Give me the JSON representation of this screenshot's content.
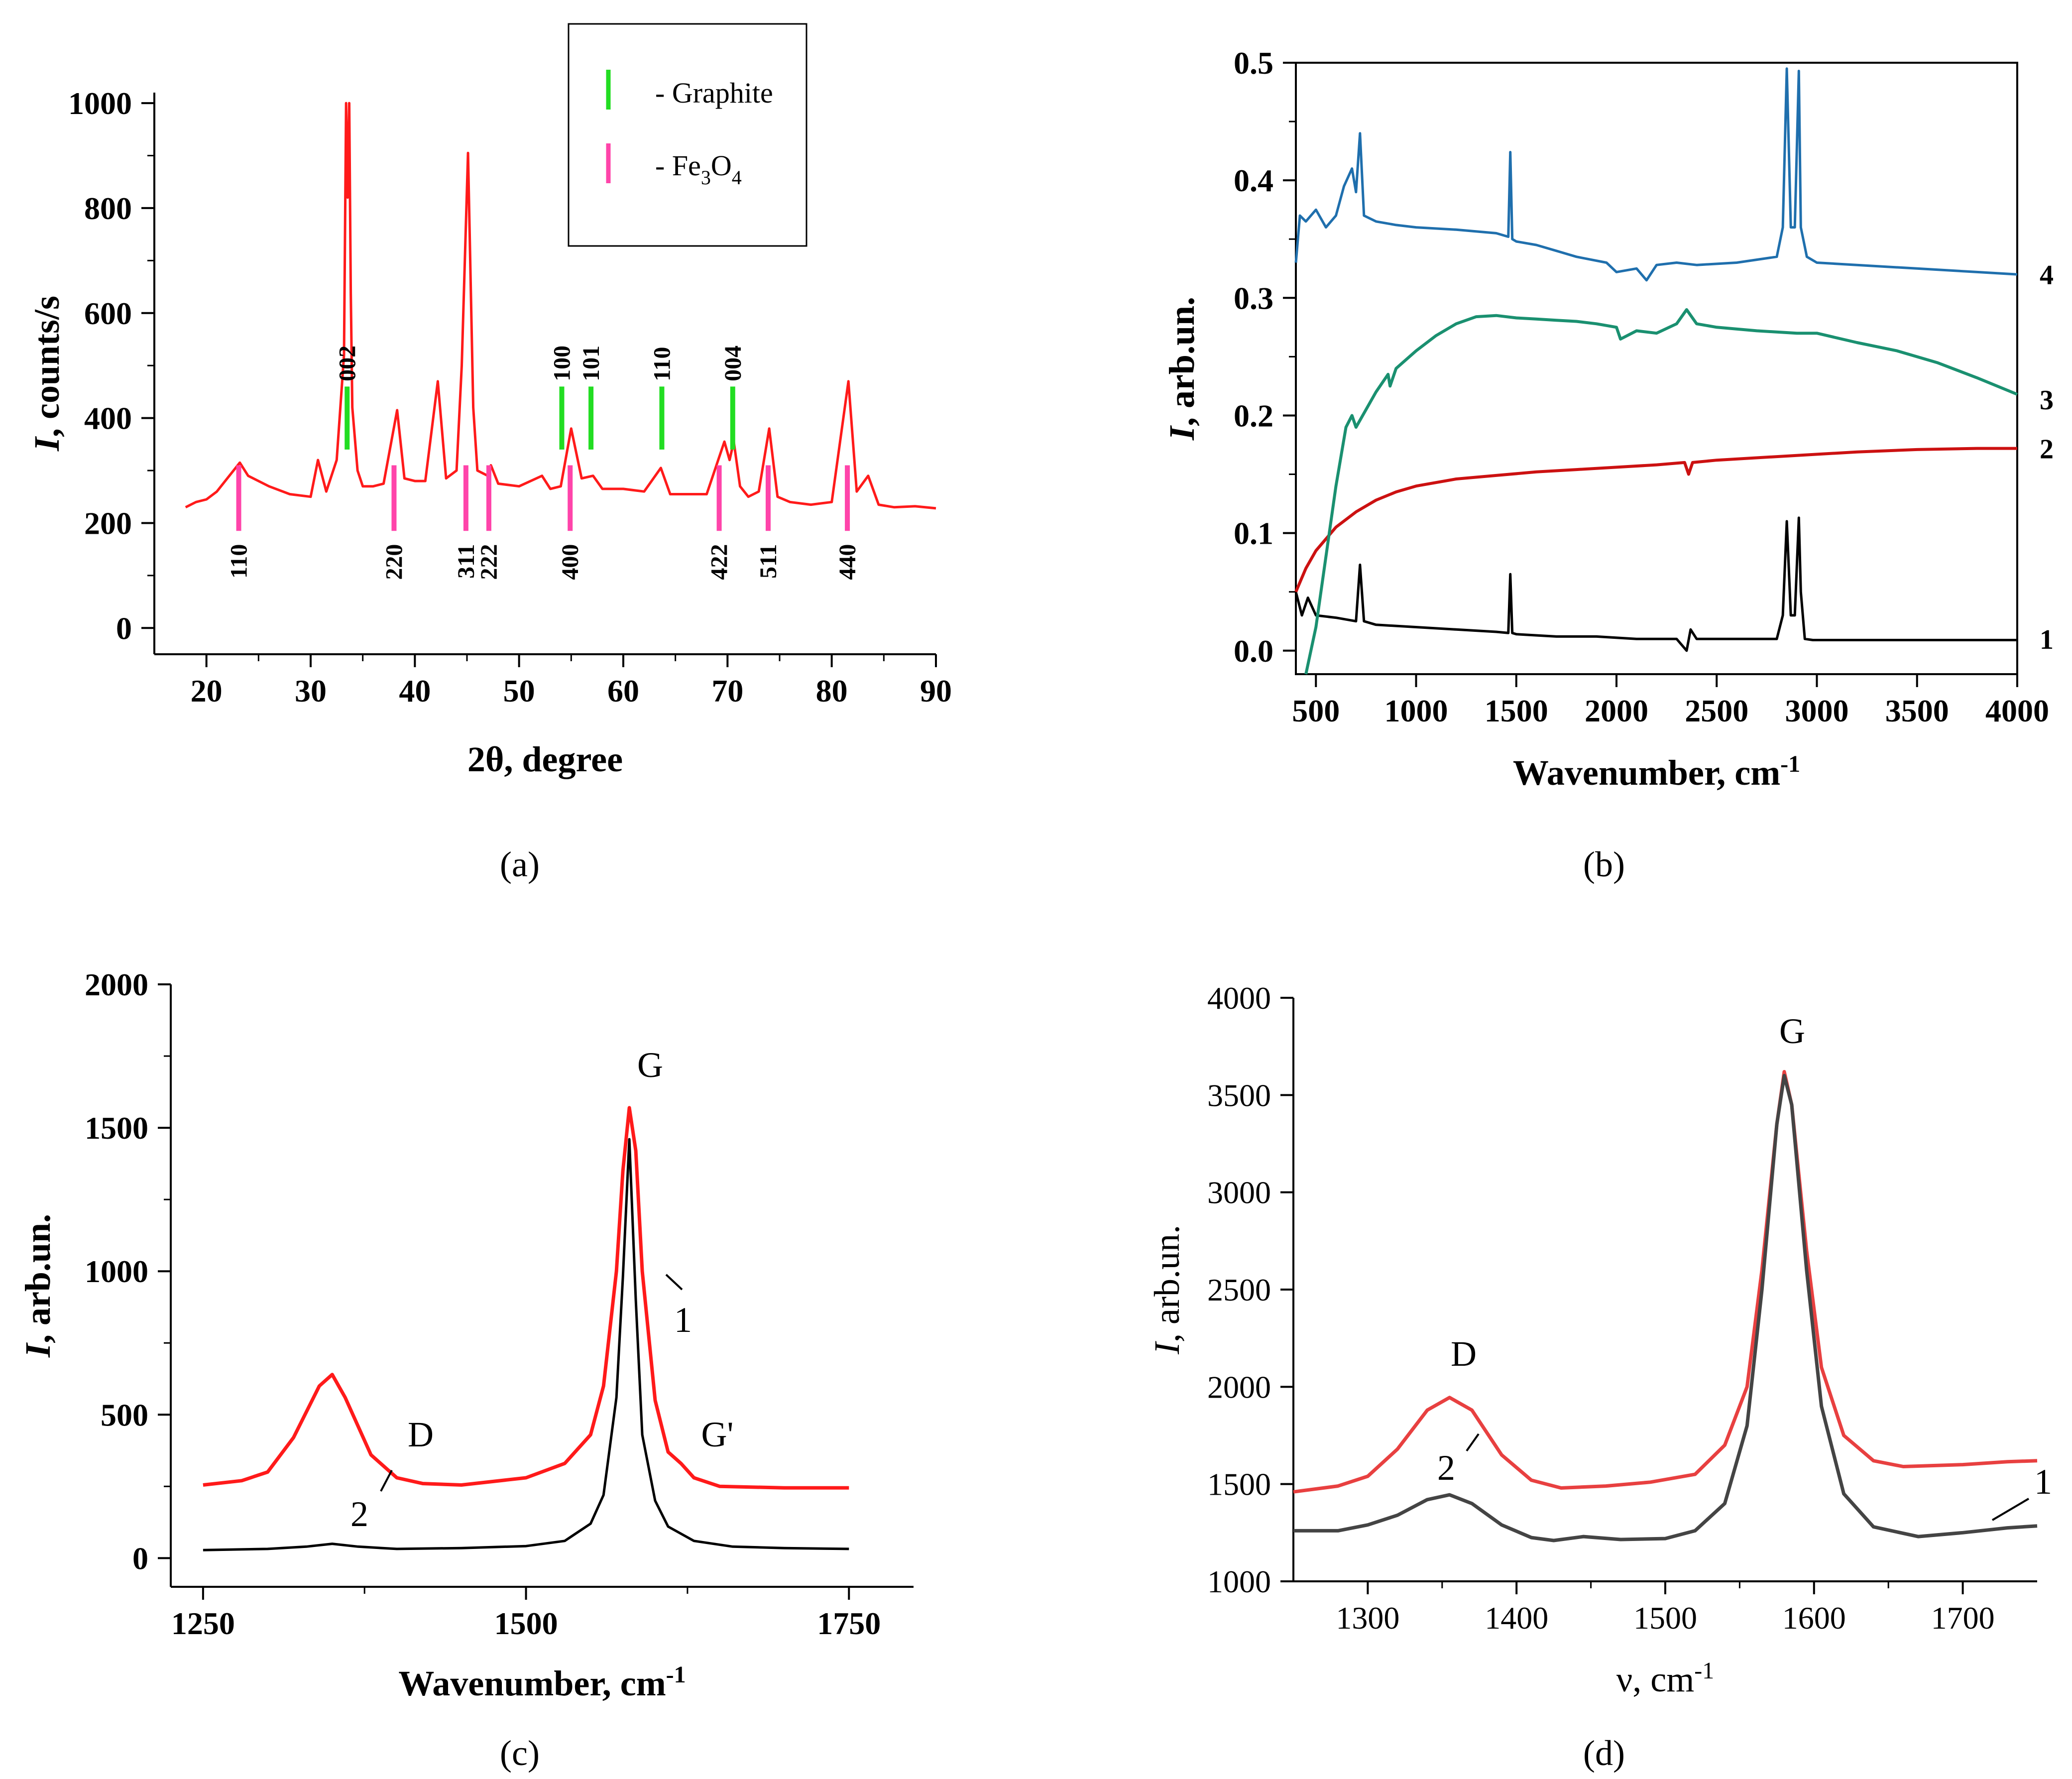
{
  "chart_data": [
    {
      "panel": "a",
      "type": "line",
      "panel_label": "(a)",
      "xlabel": "2θ, degree",
      "ylabel": "I, counts/s",
      "xlim": [
        15,
        90
      ],
      "ylim": [
        -50,
        1020
      ],
      "xticks": [
        20,
        30,
        40,
        50,
        60,
        70,
        80,
        90
      ],
      "yticks": [
        0,
        200,
        400,
        600,
        800,
        1000
      ],
      "line_color": "#ff1a1a",
      "legend": {
        "placement": "top-right",
        "entries": [
          {
            "name": "- Graphite",
            "color": "#22dd22"
          },
          {
            "name": "- Fe3O4",
            "color": "#ff44aa"
          }
        ]
      },
      "series": [
        {
          "name": "",
          "baseline": 230,
          "x": [
            18,
            19,
            20,
            21,
            22,
            23.2,
            24,
            26,
            28,
            30,
            30.7,
            31.5,
            32.5,
            33.2,
            33.4,
            33.55,
            33.7,
            33.85,
            34.0,
            34.5,
            35,
            36,
            37,
            38.3,
            39,
            40,
            41,
            42.2,
            43,
            44,
            44.5,
            45.1,
            45.6,
            46,
            47,
            47.3,
            48,
            50,
            52.2,
            53,
            54,
            55.0,
            56,
            57.1,
            58,
            60,
            62,
            63.6,
            64.5,
            66,
            68,
            69.7,
            70.2,
            70.6,
            71.2,
            72,
            73,
            74.0,
            74.8,
            76,
            78,
            80,
            81.6,
            82.4,
            83.5,
            84.5,
            86,
            88,
            90
          ],
          "y": [
            230,
            240,
            245,
            260,
            285,
            315,
            290,
            270,
            255,
            250,
            320,
            260,
            320,
            520,
            1000,
            820,
            1000,
            640,
            420,
            300,
            270,
            270,
            275,
            415,
            285,
            280,
            280,
            470,
            285,
            300,
            500,
            905,
            420,
            300,
            290,
            310,
            275,
            270,
            290,
            265,
            270,
            380,
            285,
            290,
            265,
            265,
            260,
            305,
            255,
            255,
            255,
            355,
            320,
            355,
            270,
            250,
            260,
            380,
            250,
            240,
            235,
            240,
            470,
            260,
            290,
            235,
            230,
            232,
            228
          ]
        }
      ],
      "graphite_peaks": [
        {
          "x": 33.5,
          "label": "002"
        },
        {
          "x": 54.1,
          "label": "100"
        },
        {
          "x": 56.9,
          "label": "101"
        },
        {
          "x": 63.7,
          "label": "110"
        },
        {
          "x": 70.5,
          "label": "004"
        }
      ],
      "fe3o4_peaks": [
        {
          "x": 23.1,
          "label": "110"
        },
        {
          "x": 38.0,
          "label": "220"
        },
        {
          "x": 44.9,
          "label": "311"
        },
        {
          "x": 47.1,
          "label": "222"
        },
        {
          "x": 54.9,
          "label": "400"
        },
        {
          "x": 69.2,
          "label": "422"
        },
        {
          "x": 73.9,
          "label": "511"
        },
        {
          "x": 81.5,
          "label": "440"
        }
      ]
    },
    {
      "panel": "b",
      "type": "line",
      "panel_label": "(b)",
      "xlabel": "Wavenumber, cm-1",
      "ylabel": "I, arb.un.",
      "xlim": [
        400,
        4000
      ],
      "ylim": [
        -0.02,
        0.5
      ],
      "xticks": [
        500,
        1000,
        1500,
        2000,
        2500,
        3000,
        3500,
        4000
      ],
      "yticks": [
        0.0,
        0.1,
        0.2,
        0.3,
        0.4,
        0.5
      ],
      "series": [
        {
          "name": "1",
          "color": "#000000",
          "x": [
            400,
            430,
            460,
            500,
            600,
            700,
            720,
            740,
            800,
            1000,
            1200,
            1400,
            1460,
            1470,
            1480,
            1500,
            1700,
            1900,
            2100,
            2300,
            2350,
            2370,
            2400,
            2600,
            2800,
            2830,
            2850,
            2870,
            2890,
            2910,
            2920,
            2940,
            2980,
            3200,
            3500,
            4000
          ],
          "y": [
            0.05,
            0.03,
            0.045,
            0.03,
            0.028,
            0.025,
            0.073,
            0.025,
            0.022,
            0.02,
            0.018,
            0.016,
            0.015,
            0.065,
            0.015,
            0.014,
            0.012,
            0.012,
            0.01,
            0.01,
            0.0,
            0.018,
            0.01,
            0.01,
            0.01,
            0.03,
            0.11,
            0.03,
            0.03,
            0.113,
            0.05,
            0.01,
            0.009,
            0.009,
            0.009,
            0.009
          ]
        },
        {
          "name": "2",
          "color": "#cc1111",
          "x": [
            400,
            450,
            500,
            600,
            700,
            800,
            900,
            1000,
            1200,
            1400,
            1600,
            1800,
            2000,
            2200,
            2340,
            2360,
            2380,
            2500,
            2800,
            3000,
            3200,
            3500,
            3800,
            4000
          ],
          "y": [
            0.05,
            0.07,
            0.085,
            0.105,
            0.118,
            0.128,
            0.135,
            0.14,
            0.146,
            0.149,
            0.152,
            0.154,
            0.156,
            0.158,
            0.16,
            0.15,
            0.16,
            0.162,
            0.165,
            0.167,
            0.169,
            0.171,
            0.172,
            0.172
          ]
        },
        {
          "name": "3",
          "color": "#1a9070",
          "x": [
            450,
            500,
            550,
            600,
            650,
            680,
            700,
            800,
            860,
            870,
            900,
            1000,
            1100,
            1200,
            1300,
            1400,
            1500,
            1600,
            1700,
            1800,
            1900,
            2000,
            2020,
            2100,
            2200,
            2300,
            2350,
            2400,
            2500,
            2700,
            2900,
            3000,
            3200,
            3400,
            3600,
            3800,
            4000
          ],
          "y": [
            -0.02,
            0.02,
            0.08,
            0.14,
            0.19,
            0.2,
            0.19,
            0.22,
            0.235,
            0.225,
            0.24,
            0.255,
            0.268,
            0.278,
            0.284,
            0.285,
            0.283,
            0.282,
            0.281,
            0.28,
            0.278,
            0.275,
            0.265,
            0.272,
            0.27,
            0.278,
            0.29,
            0.278,
            0.275,
            0.272,
            0.27,
            0.27,
            0.262,
            0.255,
            0.245,
            0.232,
            0.218
          ]
        },
        {
          "name": "4",
          "color": "#1f6fad",
          "x": [
            400,
            420,
            450,
            500,
            550,
            600,
            640,
            680,
            700,
            720,
            740,
            800,
            900,
            1000,
            1200,
            1400,
            1460,
            1470,
            1480,
            1500,
            1600,
            1700,
            1800,
            1950,
            2000,
            2100,
            2150,
            2200,
            2300,
            2400,
            2600,
            2800,
            2830,
            2850,
            2870,
            2890,
            2910,
            2920,
            2950,
            3000,
            3200,
            3500,
            3800,
            4000
          ],
          "y": [
            0.33,
            0.37,
            0.365,
            0.375,
            0.36,
            0.37,
            0.395,
            0.41,
            0.39,
            0.44,
            0.37,
            0.365,
            0.362,
            0.36,
            0.358,
            0.355,
            0.352,
            0.424,
            0.35,
            0.348,
            0.345,
            0.34,
            0.335,
            0.33,
            0.322,
            0.325,
            0.315,
            0.328,
            0.33,
            0.328,
            0.33,
            0.335,
            0.36,
            0.495,
            0.36,
            0.36,
            0.493,
            0.36,
            0.335,
            0.33,
            0.328,
            0.325,
            0.322,
            0.32
          ]
        }
      ]
    },
    {
      "panel": "c",
      "type": "line",
      "panel_label": "(c)",
      "xlabel": "Wavenumber, cm-1",
      "ylabel": "I, arb.un.",
      "xlim": [
        1225,
        1800
      ],
      "ylim": [
        -100,
        2000
      ],
      "xticks": [
        1250,
        1500,
        1750
      ],
      "yticks": [
        0,
        500,
        1000,
        1500,
        2000
      ],
      "annotations": [
        "G",
        "D",
        "G'",
        "1",
        "2"
      ],
      "series": [
        {
          "name": "1",
          "color": "#000000",
          "x": [
            1250,
            1300,
            1330,
            1350,
            1370,
            1400,
            1450,
            1500,
            1530,
            1550,
            1560,
            1570,
            1575,
            1580,
            1585,
            1590,
            1600,
            1610,
            1630,
            1660,
            1700,
            1750
          ],
          "y": [
            28,
            32,
            40,
            50,
            40,
            32,
            35,
            42,
            60,
            120,
            220,
            560,
            980,
            1460,
            900,
            430,
            200,
            110,
            60,
            40,
            35,
            32
          ]
        },
        {
          "name": "2",
          "color": "#ff1a1a",
          "x": [
            1250,
            1280,
            1300,
            1320,
            1340,
            1350,
            1360,
            1380,
            1400,
            1420,
            1450,
            1500,
            1530,
            1550,
            1560,
            1570,
            1575,
            1580,
            1585,
            1590,
            1600,
            1610,
            1620,
            1630,
            1650,
            1700,
            1750
          ],
          "y": [
            255,
            270,
            300,
            420,
            600,
            640,
            560,
            360,
            280,
            260,
            255,
            280,
            330,
            430,
            600,
            1000,
            1350,
            1570,
            1420,
            1000,
            550,
            370,
            330,
            280,
            250,
            245,
            245
          ]
        }
      ]
    },
    {
      "panel": "d",
      "type": "line",
      "panel_label": "(d)",
      "xlabel": "ν, cm-1",
      "ylabel": "I, arb.un.",
      "xlim": [
        1250,
        1750
      ],
      "ylim": [
        1000,
        4000
      ],
      "xticks": [
        1300,
        1400,
        1500,
        1600,
        1700
      ],
      "yticks": [
        1000,
        1500,
        2000,
        2500,
        3000,
        3500,
        4000
      ],
      "annotations": [
        "G",
        "D",
        "1",
        "2"
      ],
      "series": [
        {
          "name": "1",
          "color": "#444444",
          "x": [
            1250,
            1280,
            1300,
            1320,
            1340,
            1355,
            1370,
            1390,
            1410,
            1425,
            1445,
            1470,
            1500,
            1520,
            1540,
            1555,
            1565,
            1575,
            1580,
            1585,
            1595,
            1605,
            1620,
            1640,
            1670,
            1700,
            1730,
            1750
          ],
          "y": [
            1260,
            1260,
            1290,
            1340,
            1420,
            1445,
            1400,
            1290,
            1225,
            1210,
            1230,
            1215,
            1220,
            1260,
            1400,
            1800,
            2500,
            3350,
            3600,
            3450,
            2600,
            1900,
            1450,
            1280,
            1230,
            1250,
            1275,
            1285
          ]
        },
        {
          "name": "2",
          "color": "#e84040",
          "x": [
            1250,
            1280,
            1300,
            1320,
            1340,
            1355,
            1370,
            1390,
            1410,
            1430,
            1460,
            1490,
            1520,
            1540,
            1555,
            1565,
            1575,
            1580,
            1585,
            1595,
            1605,
            1620,
            1640,
            1660,
            1700,
            1730,
            1750
          ],
          "y": [
            1460,
            1490,
            1540,
            1680,
            1880,
            1945,
            1880,
            1650,
            1520,
            1480,
            1490,
            1510,
            1550,
            1700,
            2000,
            2600,
            3350,
            3620,
            3450,
            2700,
            2100,
            1750,
            1620,
            1590,
            1600,
            1615,
            1620
          ]
        }
      ]
    }
  ]
}
